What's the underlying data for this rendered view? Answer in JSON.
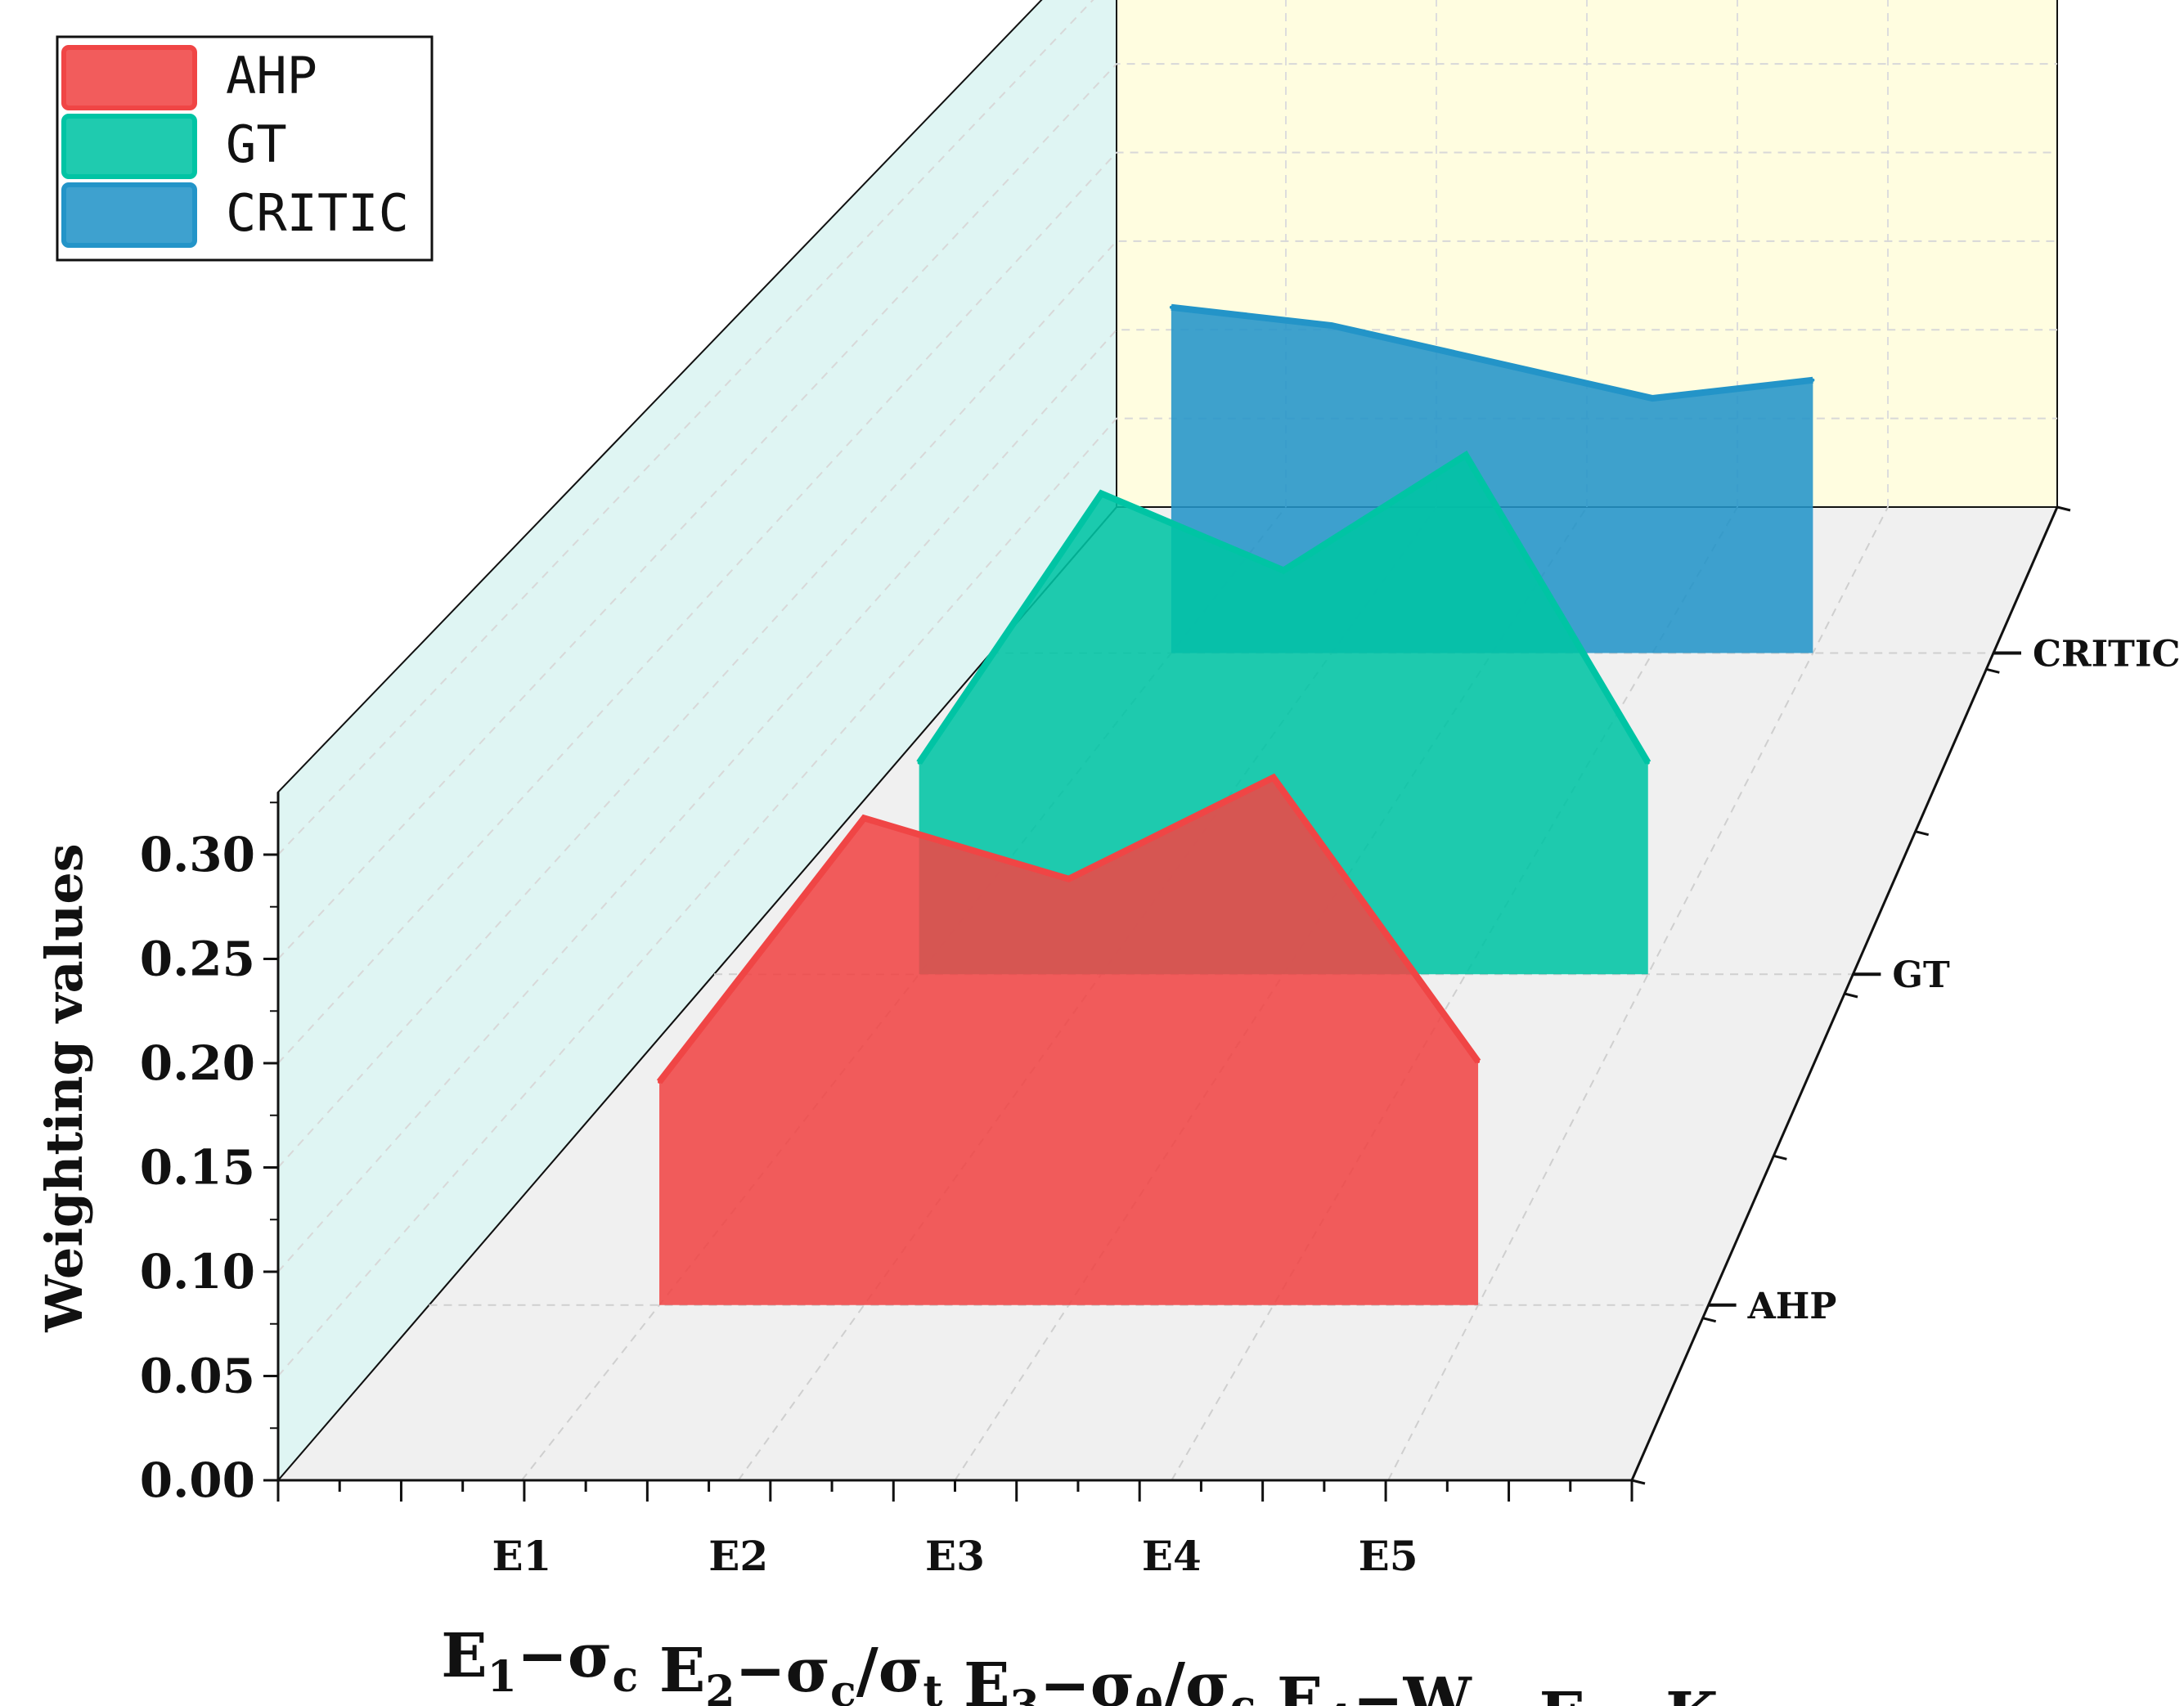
{
  "chart_data": {
    "type": "area",
    "view": "3d-waterfall",
    "x_tick_labels": [
      "E1",
      "E2",
      "E3",
      "E4",
      "E5"
    ],
    "x_axis_title": {
      "parts": [
        {
          "base": "E",
          "sub": "1",
          "rest": "−σ",
          "sub2": "c"
        },
        {
          "base": "E",
          "sub": "2",
          "rest": "−σ",
          "sub2": "c",
          "tail": "/σ",
          "sub3": "t"
        },
        {
          "base": "E",
          "sub": "3",
          "rest": "−σ",
          "sub2": "θ",
          "tail": "/σ",
          "sub3": "c"
        },
        {
          "base": "E",
          "sub": "4",
          "rest": "−W",
          "sub2": "et"
        },
        {
          "base": "E",
          "sub": "5",
          "rest": "−K",
          "sub2": "v"
        }
      ]
    },
    "ylabel": "Weighting values",
    "y_ticks": [
      "0.00",
      "0.05",
      "0.10",
      "0.15",
      "0.20",
      "0.25",
      "0.30"
    ],
    "ylim": [
      0,
      0.33
    ],
    "z_tick_labels": [
      "AHP",
      "GT",
      "CRITIC"
    ],
    "series": [
      {
        "name": "AHP",
        "color": "#f04545",
        "values": [
          0.11,
          0.24,
          0.21,
          0.26,
          0.12
        ]
      },
      {
        "name": "GT",
        "color": "#00c4a4",
        "values": [
          0.11,
          0.25,
          0.21,
          0.27,
          0.11
        ]
      },
      {
        "name": "CRITIC",
        "color": "#2394c8",
        "values": [
          0.19,
          0.18,
          0.16,
          0.14,
          0.15
        ]
      }
    ],
    "legend_position": "top-left",
    "walls": {
      "side": "#dff5f3",
      "back": "#fffde0",
      "floor": "#f0f0f0"
    }
  }
}
